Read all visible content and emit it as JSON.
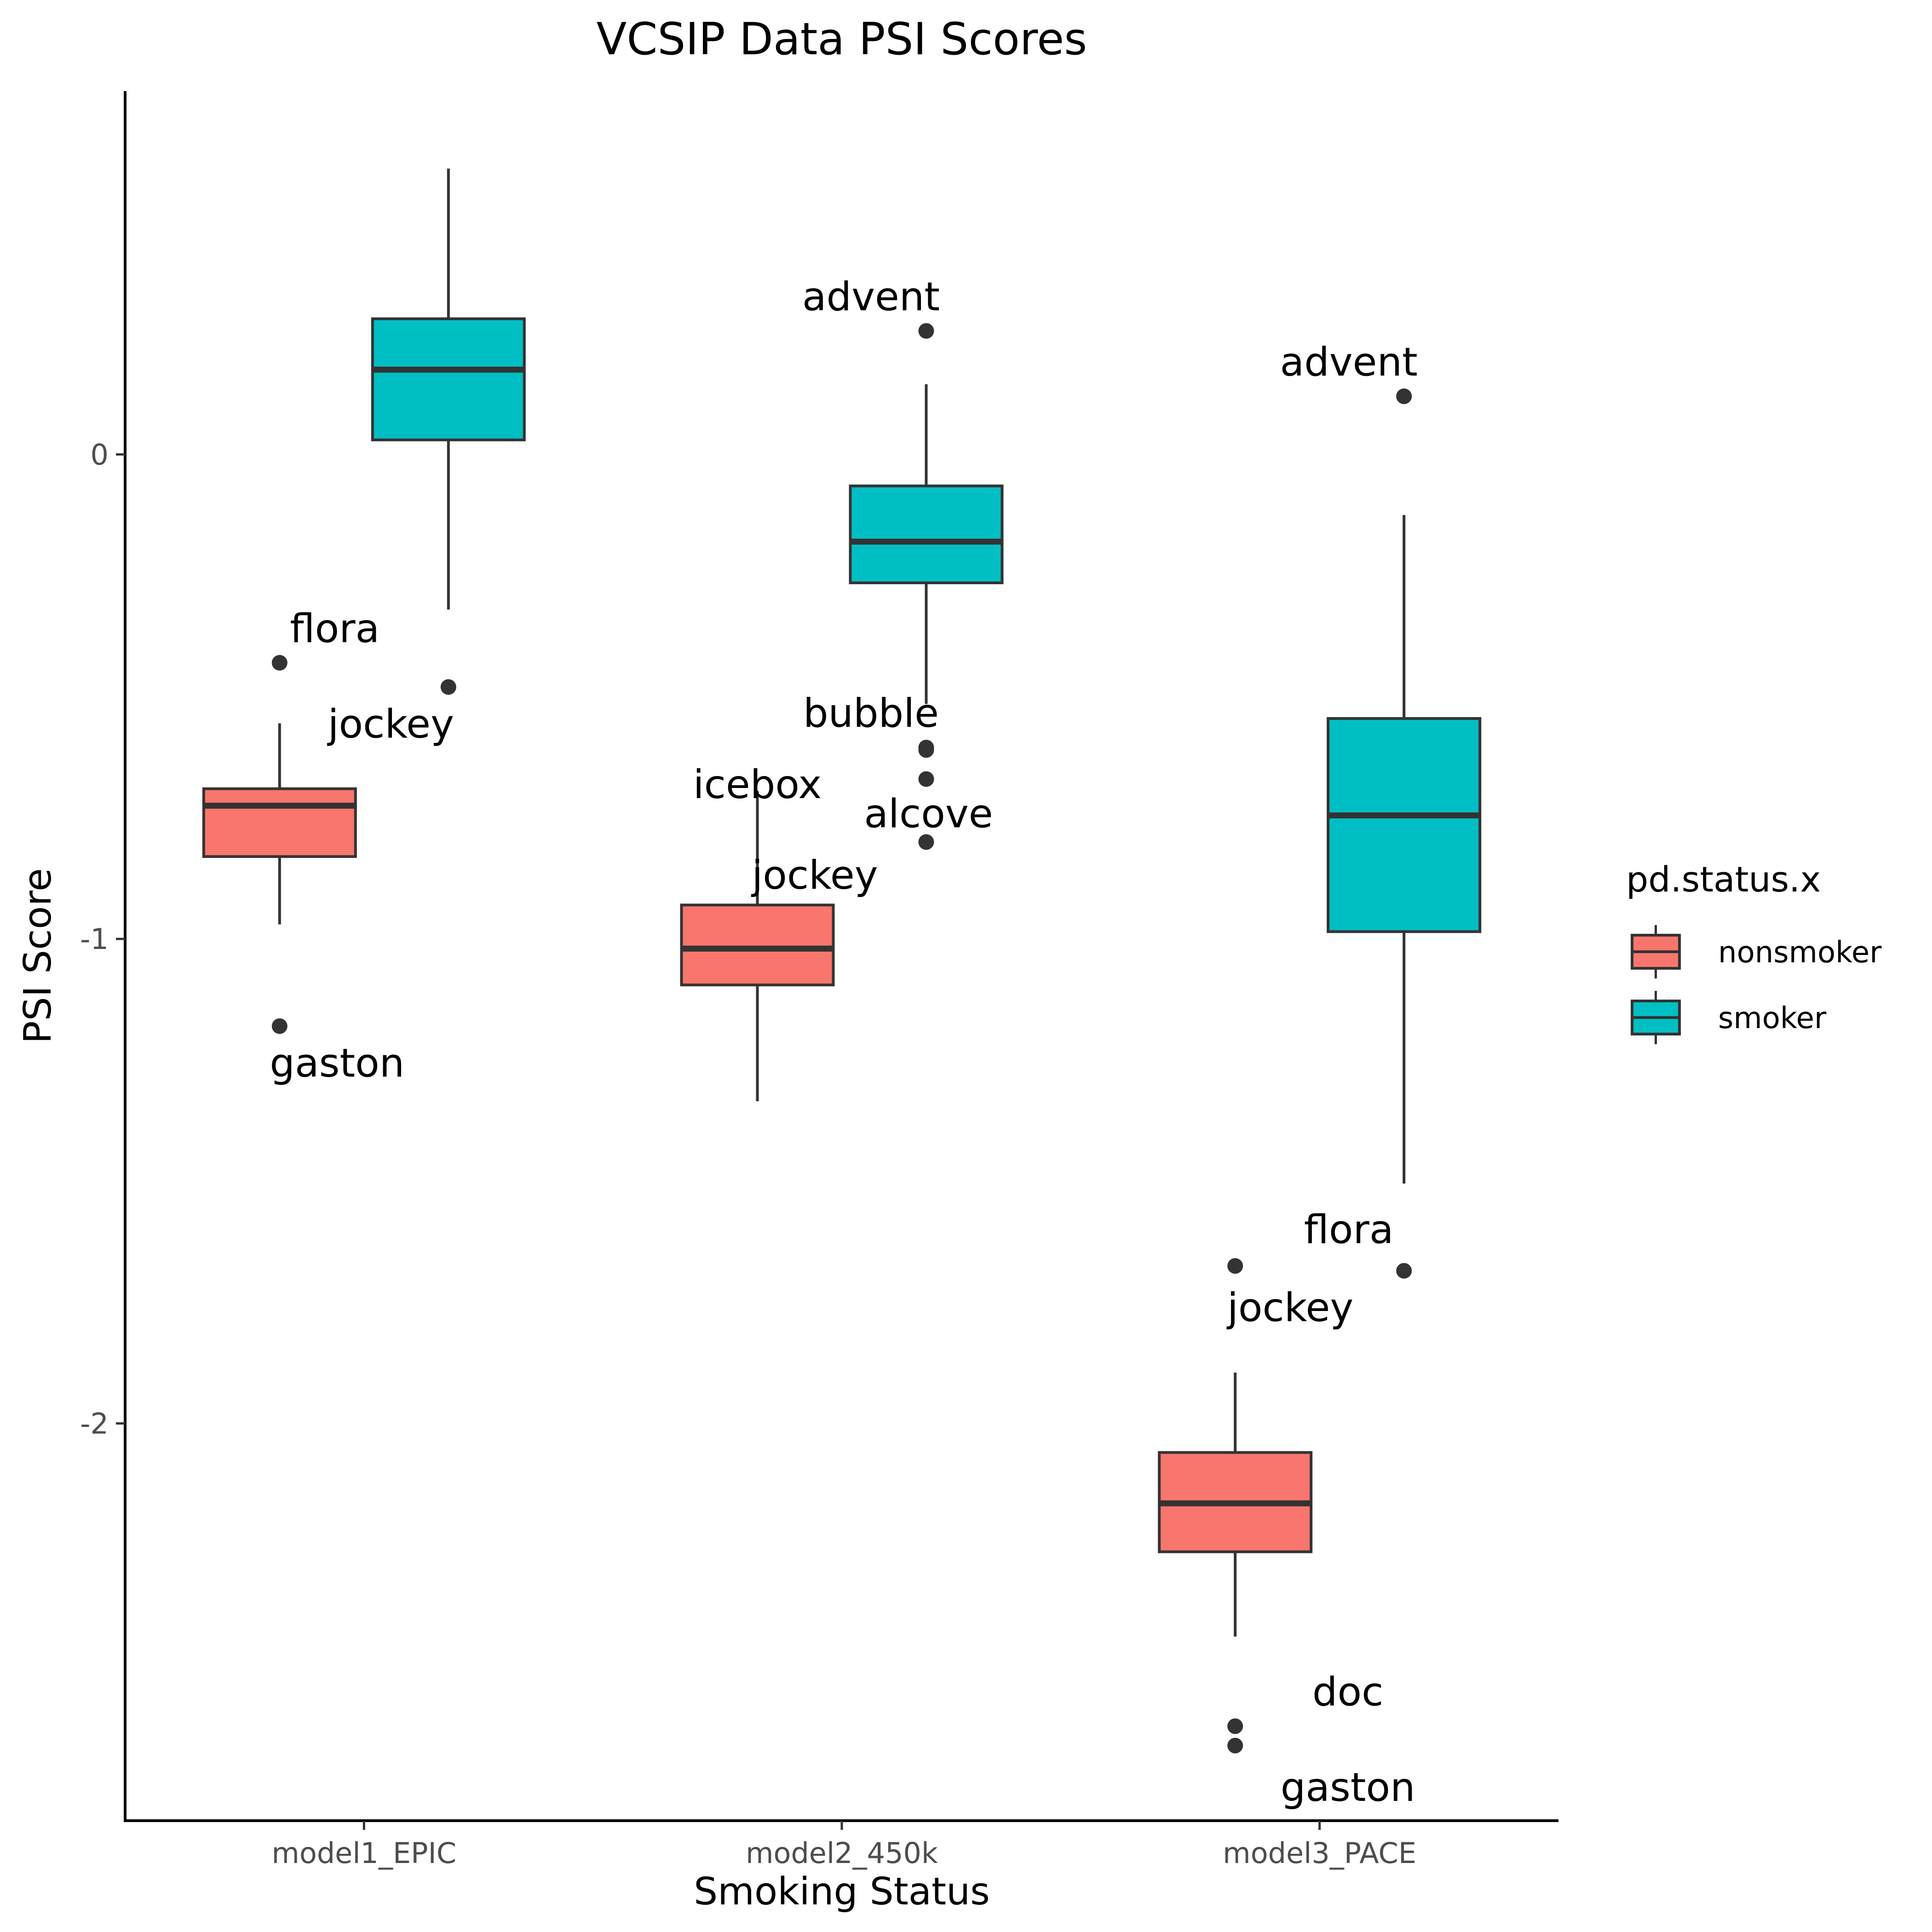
{
  "chart_data": {
    "type": "boxplot",
    "title": "VCSIP Data PSI Scores",
    "xlabel": "Smoking Status",
    "ylabel": "PSI Score",
    "categories": [
      "model1_EPIC",
      "model2_450k",
      "model3_PACE"
    ],
    "ylim": [
      -2.82,
      0.75
    ],
    "yticks": [
      0,
      -1,
      -2
    ],
    "ytick_labels": [
      "0",
      "-1",
      "-2"
    ],
    "legend": {
      "title": "pd.status.x",
      "position": "right",
      "entries": [
        "nonsmoker",
        "smoker"
      ]
    },
    "colors": {
      "nonsmoker": "#F8766D",
      "smoker": "#00BFC4",
      "outline": "#333333"
    },
    "grid": false,
    "series": [
      {
        "name": "nonsmoker",
        "boxes": [
          {
            "category": "model1_EPIC",
            "whisker_low": -0.97,
            "q1": -0.83,
            "median": -0.725,
            "q3": -0.69,
            "whisker_high": -0.555
          },
          {
            "category": "model2_450k",
            "whisker_low": -1.335,
            "q1": -1.095,
            "median": -1.02,
            "q3": -0.93,
            "whisker_high": -0.695
          },
          {
            "category": "model3_PACE",
            "whisker_low": -2.44,
            "q1": -2.265,
            "median": -2.165,
            "q3": -2.06,
            "whisker_high": -1.895
          }
        ],
        "outliers": [
          {
            "category": "model1_EPIC",
            "y": -0.43,
            "label": "flora"
          },
          {
            "category": "model1_EPIC",
            "y": -1.18,
            "label": "gaston"
          },
          {
            "category": "model3_PACE",
            "y": -1.675,
            "label": "jockey"
          },
          {
            "category": "model3_PACE",
            "y": -2.625,
            "label": "doc"
          },
          {
            "category": "model3_PACE",
            "y": -2.665,
            "label": "gaston"
          }
        ],
        "annotations": [
          {
            "category": "model2_450k",
            "label": "icebox"
          },
          {
            "category": "model2_450k",
            "label": "jockey"
          }
        ]
      },
      {
        "name": "smoker",
        "boxes": [
          {
            "category": "model1_EPIC",
            "whisker_low": -0.32,
            "q1": 0.03,
            "median": 0.175,
            "q3": 0.28,
            "whisker_high": 0.59
          },
          {
            "category": "model2_450k",
            "whisker_low": -0.515,
            "q1": -0.265,
            "median": -0.18,
            "q3": -0.065,
            "whisker_high": 0.145
          },
          {
            "category": "model3_PACE",
            "whisker_low": -1.505,
            "q1": -0.985,
            "median": -0.745,
            "q3": -0.545,
            "whisker_high": -0.125
          }
        ],
        "outliers": [
          {
            "category": "model1_EPIC",
            "y": -0.48,
            "label": "jockey"
          },
          {
            "category": "model2_450k",
            "y": 0.255,
            "label": "advent"
          },
          {
            "category": "model2_450k",
            "y": -0.605,
            "label": "bubble"
          },
          {
            "category": "model2_450k",
            "y": -0.61
          },
          {
            "category": "model2_450k",
            "y": -0.67,
            "label": "alcove"
          },
          {
            "category": "model2_450k",
            "y": -0.8
          },
          {
            "category": "model3_PACE",
            "y": 0.12,
            "label": "advent"
          },
          {
            "category": "model3_PACE",
            "y": -1.685,
            "label": "flora"
          }
        ]
      }
    ]
  }
}
